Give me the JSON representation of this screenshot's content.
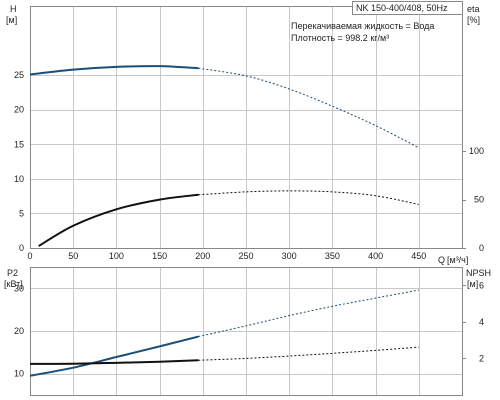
{
  "header": {
    "pump_model": "NK 150-400/408, 50Hz",
    "fluid_line": "Перекачиваемая жидкость = Вода",
    "density_line": "Плотность = 998.2 кг/м³"
  },
  "chart_data": [
    {
      "type": "line",
      "panel": "upper",
      "x_axis": {
        "label": "Q",
        "unit": "[м³/ч]",
        "range": [
          0,
          500
        ],
        "ticks": [
          0,
          50,
          100,
          150,
          200,
          250,
          300,
          350,
          400,
          450
        ]
      },
      "y_left": {
        "label": "H",
        "unit": "[м]",
        "range": [
          0,
          35
        ],
        "ticks": [
          0,
          5,
          10,
          15,
          20,
          25
        ]
      },
      "y_right": {
        "label": "eta",
        "unit": "[%]",
        "range": [
          0,
          250
        ],
        "ticks": [
          0,
          50,
          100
        ]
      },
      "grid": true,
      "series": [
        {
          "axis": "left",
          "color": "#1a4f7a",
          "solid_until_x": 195,
          "x": [
            0,
            50,
            100,
            150,
            195,
            250,
            300,
            350,
            400,
            450
          ],
          "y": [
            25.1,
            25.8,
            26.2,
            26.3,
            26.0,
            24.9,
            23.0,
            20.5,
            17.7,
            14.5
          ]
        },
        {
          "axis": "right",
          "color": "#111111",
          "solid_until_x": 195,
          "x": [
            10,
            50,
            100,
            150,
            195,
            250,
            300,
            350,
            400,
            450
          ],
          "y": [
            2,
            23,
            40,
            50,
            55,
            58,
            59,
            58,
            54,
            45
          ]
        }
      ]
    },
    {
      "type": "line",
      "panel": "lower",
      "x_axis": {
        "range": [
          0,
          500
        ]
      },
      "y_left": {
        "label": "P2",
        "unit": "[кВт]",
        "range": [
          5,
          35
        ],
        "ticks": [
          10,
          20,
          30
        ]
      },
      "y_right": {
        "label": "NPSH",
        "unit": "[м]",
        "range": [
          0,
          7
        ],
        "ticks": [
          2,
          4,
          6
        ]
      },
      "grid": true,
      "series": [
        {
          "axis": "left",
          "color": "#1a4f7a",
          "solid_until_x": 195,
          "x": [
            0,
            50,
            100,
            150,
            195,
            250,
            300,
            350,
            400,
            450
          ],
          "y": [
            9.5,
            11.4,
            13.9,
            16.4,
            18.7,
            21.2,
            23.6,
            25.8,
            27.7,
            29.6
          ]
        },
        {
          "axis": "right",
          "color": "#111111",
          "solid_until_x": 195,
          "x": [
            0,
            50,
            100,
            150,
            195,
            250,
            300,
            350,
            400,
            450
          ],
          "y": [
            1.7,
            1.71,
            1.76,
            1.82,
            1.9,
            2.0,
            2.13,
            2.28,
            2.44,
            2.62
          ]
        }
      ]
    }
  ]
}
